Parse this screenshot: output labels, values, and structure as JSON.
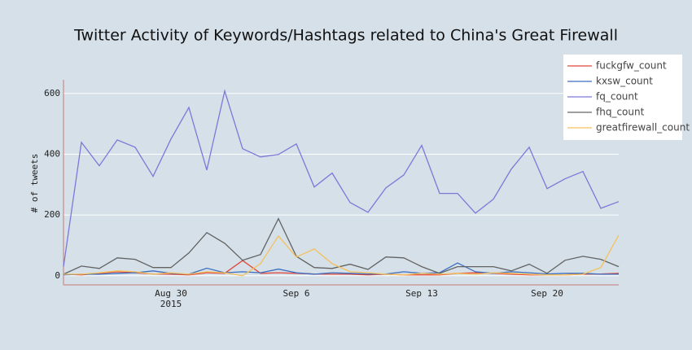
{
  "chart_data": {
    "type": "line",
    "title": "Twitter Activity of Keywords/Hashtags related to China's Great Firewall",
    "y_label": "# of tweets",
    "x": [
      "2015-08-24",
      "2015-08-25",
      "2015-08-26",
      "2015-08-27",
      "2015-08-28",
      "2015-08-29",
      "2015-08-30",
      "2015-08-31",
      "2015-09-01",
      "2015-09-02",
      "2015-09-03",
      "2015-09-04",
      "2015-09-05",
      "2015-09-06",
      "2015-09-07",
      "2015-09-08",
      "2015-09-09",
      "2015-09-10",
      "2015-09-11",
      "2015-09-12",
      "2015-09-13",
      "2015-09-14",
      "2015-09-15",
      "2015-09-16",
      "2015-09-17",
      "2015-09-18",
      "2015-09-19",
      "2015-09-20",
      "2015-09-21",
      "2015-09-22",
      "2015-09-23",
      "2015-09-24"
    ],
    "series": [
      {
        "name": "fuckgfw_count",
        "color": "#e0483a",
        "values": [
          5,
          3,
          8,
          13,
          10,
          6,
          5,
          3,
          10,
          8,
          50,
          8,
          10,
          8,
          6,
          5,
          5,
          3,
          5,
          3,
          3,
          3,
          8,
          10,
          8,
          5,
          3,
          3,
          3,
          5,
          6,
          8
        ]
      },
      {
        "name": "kxsw_count",
        "color": "#3c6dbf",
        "values": [
          3,
          5,
          5,
          8,
          10,
          16,
          8,
          5,
          25,
          10,
          13,
          10,
          22,
          10,
          5,
          10,
          8,
          6,
          6,
          13,
          8,
          10,
          42,
          13,
          8,
          13,
          10,
          6,
          8,
          8,
          5,
          5
        ]
      },
      {
        "name": "fq_count",
        "color": "#7c78d8",
        "values": [
          30,
          439,
          362,
          447,
          423,
          327,
          450,
          554,
          348,
          608,
          418,
          391,
          399,
          434,
          292,
          338,
          241,
          209,
          289,
          332,
          429,
          271,
          271,
          206,
          252,
          351,
          423,
          287,
          319,
          343,
          222,
          244
        ]
      },
      {
        "name": "fhq_count",
        "color": "#636363",
        "values": [
          5,
          32,
          24,
          59,
          54,
          27,
          27,
          75,
          142,
          107,
          51,
          70,
          188,
          64,
          27,
          24,
          38,
          21,
          62,
          59,
          30,
          8,
          30,
          30,
          30,
          16,
          38,
          8,
          51,
          64,
          54,
          30
        ]
      },
      {
        "name": "greatfirewall_count",
        "color": "#f5c15c",
        "values": [
          5,
          5,
          10,
          16,
          13,
          5,
          10,
          5,
          13,
          10,
          0,
          40,
          131,
          62,
          88,
          40,
          13,
          10,
          5,
          3,
          8,
          5,
          8,
          5,
          10,
          8,
          5,
          3,
          3,
          5,
          27,
          134
        ]
      }
    ],
    "xlim": [
      "2015-08-24",
      "2015-09-24"
    ],
    "xticks": [
      {
        "value": "2015-08-30",
        "label": "Aug 30",
        "year": "2015"
      },
      {
        "value": "2015-09-06",
        "label": "Sep 6"
      },
      {
        "value": "2015-09-13",
        "label": "Sep 13"
      },
      {
        "value": "2015-09-20",
        "label": "Sep 20"
      }
    ],
    "ylim": [
      -30,
      645
    ],
    "yticks": [
      0,
      200,
      400,
      600
    ],
    "grid": true,
    "legend": "top-right"
  }
}
